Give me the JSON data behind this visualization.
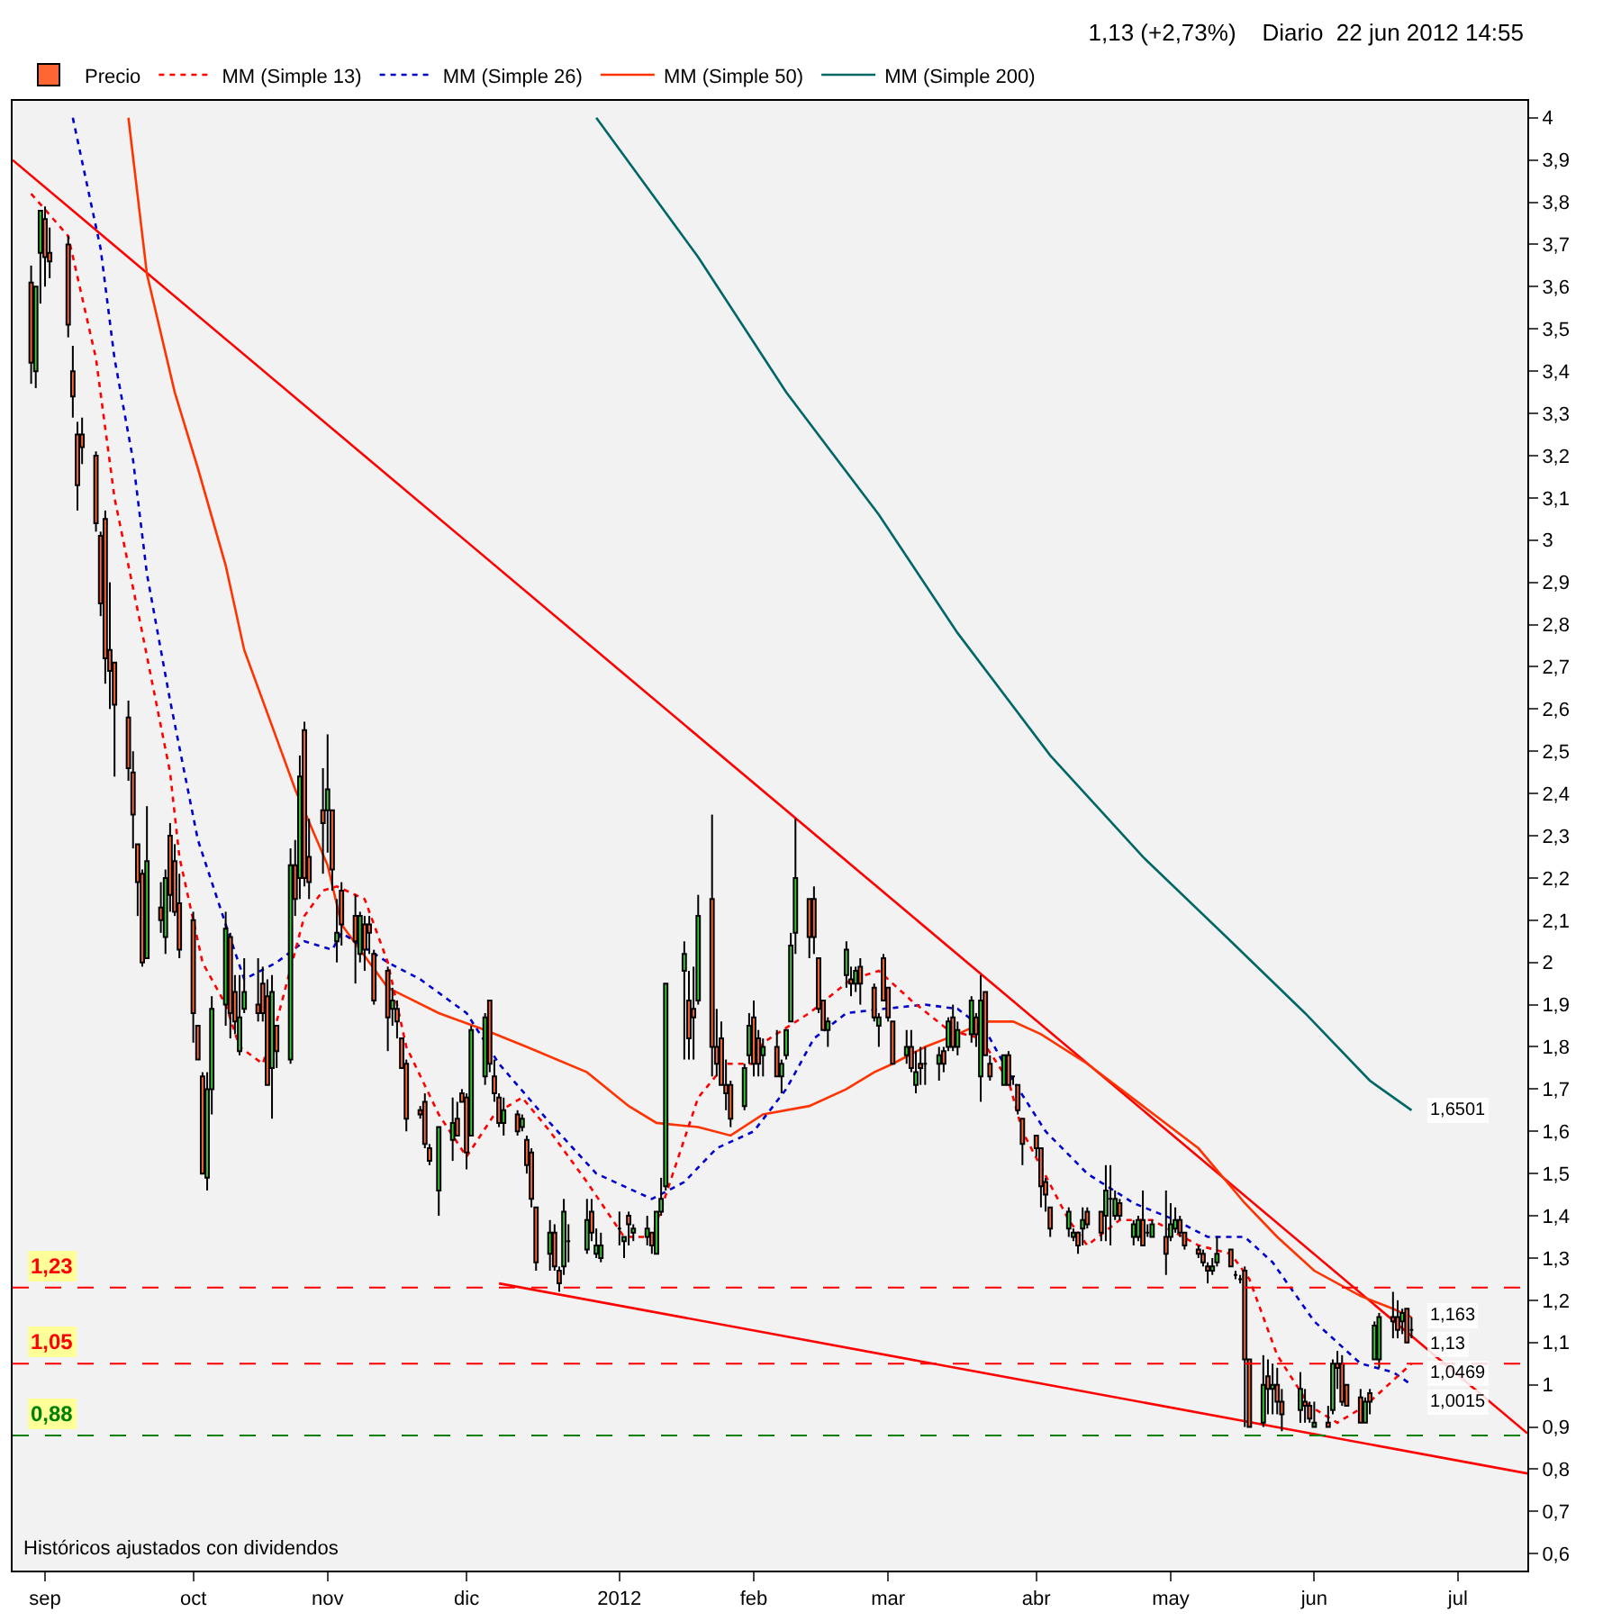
{
  "chart_data": {
    "type": "candlestick",
    "title": "1,13 (+2,73%)    Diario  22 jun 2012 14:55",
    "legend": "top left",
    "xlim": [
      "2011-08-25",
      "2012-07-17"
    ],
    "xticks": [
      {
        "value": "2011-09-01",
        "label": "sep"
      },
      {
        "value": "2011-10-03",
        "label": "oct"
      },
      {
        "value": "2011-11-01",
        "label": "nov"
      },
      {
        "value": "2011-12-01",
        "label": "dic"
      },
      {
        "value": "2012-01-03",
        "label": "2012"
      },
      {
        "value": "2012-02-01",
        "label": "feb"
      },
      {
        "value": "2012-03-01",
        "label": "mar"
      },
      {
        "value": "2012-04-02",
        "label": "abr"
      },
      {
        "value": "2012-05-01",
        "label": "may"
      },
      {
        "value": "2012-06-01",
        "label": "jun"
      },
      {
        "value": "2012-07-02",
        "label": "jul"
      }
    ],
    "ylim": [
      0.56,
      4.04
    ],
    "yticks": [
      {
        "value": 0.6,
        "label": "0,6"
      },
      {
        "value": 0.7,
        "label": "0,7"
      },
      {
        "value": 0.8,
        "label": "0,8"
      },
      {
        "value": 0.9,
        "label": "0,9"
      },
      {
        "value": 1,
        "label": "1"
      },
      {
        "value": 1.1,
        "label": "1,1"
      },
      {
        "value": 1.2,
        "label": "1,2"
      },
      {
        "value": 1.3,
        "label": "1,3"
      },
      {
        "value": 1.4,
        "label": "1,4"
      },
      {
        "value": 1.5,
        "label": "1,5"
      },
      {
        "value": 1.6,
        "label": "1,6"
      },
      {
        "value": 1.7,
        "label": "1,7"
      },
      {
        "value": 1.8,
        "label": "1,8"
      },
      {
        "value": 1.9,
        "label": "1,9"
      },
      {
        "value": 2,
        "label": "2"
      },
      {
        "value": 2.1,
        "label": "2,1"
      },
      {
        "value": 2.2,
        "label": "2,2"
      },
      {
        "value": 2.3,
        "label": "2,3"
      },
      {
        "value": 2.4,
        "label": "2,4"
      },
      {
        "value": 2.5,
        "label": "2,5"
      },
      {
        "value": 2.6,
        "label": "2,6"
      },
      {
        "value": 2.7,
        "label": "2,7"
      },
      {
        "value": 2.8,
        "label": "2,8"
      },
      {
        "value": 2.9,
        "label": "2,9"
      },
      {
        "value": 3,
        "label": "3"
      },
      {
        "value": 3.1,
        "label": "3,1"
      },
      {
        "value": 3.2,
        "label": "3,2"
      },
      {
        "value": 3.3,
        "label": "3,3"
      },
      {
        "value": 3.4,
        "label": "3,4"
      },
      {
        "value": 3.5,
        "label": "3,5"
      },
      {
        "value": 3.6,
        "label": "3,6"
      },
      {
        "value": 3.7,
        "label": "3,7"
      },
      {
        "value": 3.8,
        "label": "3,8"
      },
      {
        "value": 3.9,
        "label": "3,9"
      },
      {
        "value": 4,
        "label": "4"
      }
    ],
    "ref_lines": [
      {
        "axis": "y",
        "value": 1.23,
        "label": "1,23",
        "color": "#ff0000",
        "line_style": "dashed"
      },
      {
        "axis": "y",
        "value": 1.05,
        "label": "1,05",
        "color": "#ff0000",
        "line_style": "dashed"
      },
      {
        "axis": "y",
        "value": 0.88,
        "label": "0,88",
        "color": "#008000",
        "line_style": "dashed"
      }
    ],
    "annotations": [
      "Históricos ajustados con dividendos",
      {
        "text": "1,6501",
        "x": "2012-06-22",
        "y": 1.6501
      },
      {
        "text": "1,163",
        "x": "2012-06-22",
        "y": 1.163
      },
      {
        "text": "1,13",
        "x": "2012-06-22",
        "y": 1.13
      },
      {
        "text": "1,0469",
        "x": "2012-06-22",
        "y": 1.0469
      },
      {
        "text": "1,0015",
        "x": "2012-06-22",
        "y": 1.0015
      }
    ],
    "series": [
      {
        "type": "line",
        "color": "#ff0000",
        "line_style": "solid",
        "x": [
          "2011-08-25",
          "2012-07-17"
        ],
        "values": [
          3.9,
          0.885
        ]
      },
      {
        "type": "line",
        "color": "#ff0000",
        "line_style": "solid",
        "x": [
          "2011-12-08",
          "2012-07-17"
        ],
        "values": [
          1.24,
          0.79
        ]
      },
      {
        "type": "line",
        "name": "MM (Simple 200)",
        "color": "#006666",
        "line_style": "solid",
        "x": [
          "2011-12-29",
          "2012-01-20",
          "2012-02-08",
          "2012-02-28",
          "2012-03-16",
          "2012-04-05",
          "2012-04-25",
          "2012-05-14",
          "2012-05-30",
          "2012-06-13",
          "2012-06-22"
        ],
        "values": [
          4.0,
          3.67,
          3.35,
          3.06,
          2.78,
          2.49,
          2.25,
          2.05,
          1.88,
          1.72,
          1.65
        ]
      },
      {
        "type": "line",
        "name": "MM (Simple 50)",
        "color": "#ff3300",
        "line_style": "solid",
        "x": [
          "2011-09-19",
          "2011-09-23",
          "2011-09-29",
          "2011-10-04",
          "2011-10-10",
          "2011-10-14",
          "2011-10-21",
          "2011-10-25",
          "2011-11-01",
          "2011-11-04",
          "2011-11-14",
          "2011-11-25",
          "2011-12-05",
          "2011-12-14",
          "2011-12-27",
          "2012-01-05",
          "2012-01-11",
          "2012-01-20",
          "2012-01-27",
          "2012-02-03",
          "2012-02-13",
          "2012-02-21",
          "2012-02-27",
          "2012-03-02",
          "2012-03-09",
          "2012-03-16",
          "2012-03-22",
          "2012-03-28",
          "2012-04-03",
          "2012-04-13",
          "2012-04-25",
          "2012-05-07",
          "2012-05-17",
          "2012-05-24",
          "2012-06-01",
          "2012-06-11",
          "2012-06-18",
          "2012-06-22"
        ],
        "values": [
          4.0,
          3.63,
          3.35,
          3.17,
          2.94,
          2.74,
          2.53,
          2.41,
          2.23,
          2.09,
          1.94,
          1.88,
          1.84,
          1.8,
          1.74,
          1.66,
          1.62,
          1.61,
          1.59,
          1.64,
          1.66,
          1.7,
          1.74,
          1.76,
          1.8,
          1.83,
          1.86,
          1.86,
          1.83,
          1.76,
          1.66,
          1.56,
          1.43,
          1.35,
          1.27,
          1.21,
          1.18,
          1.16
        ]
      },
      {
        "type": "line",
        "name": "MM (Simple 26)",
        "color": "#0000cc",
        "line_style": "dotted",
        "x": [
          "2011-09-07",
          "2011-09-13",
          "2011-09-16",
          "2011-09-20",
          "2011-09-23",
          "2011-09-28",
          "2011-10-04",
          "2011-10-10",
          "2011-10-14",
          "2011-10-21",
          "2011-10-27",
          "2011-11-02",
          "2011-11-04",
          "2011-11-14",
          "2011-11-21",
          "2011-12-01",
          "2011-12-08",
          "2011-12-19",
          "2011-12-29",
          "2012-01-10",
          "2012-01-17",
          "2012-01-24",
          "2012-02-01",
          "2012-02-08",
          "2012-02-14",
          "2012-02-21",
          "2012-02-29",
          "2012-03-09",
          "2012-03-16",
          "2012-03-22",
          "2012-03-28",
          "2012-04-04",
          "2012-04-13",
          "2012-04-23",
          "2012-05-02",
          "2012-05-09",
          "2012-05-17",
          "2012-05-23",
          "2012-06-01",
          "2012-06-11",
          "2012-06-18",
          "2012-06-22"
        ],
        "values": [
          4.0,
          3.69,
          3.43,
          3.19,
          2.92,
          2.62,
          2.29,
          2.09,
          1.96,
          2.0,
          2.05,
          2.03,
          2.07,
          2.0,
          1.96,
          1.88,
          1.76,
          1.62,
          1.5,
          1.44,
          1.48,
          1.56,
          1.6,
          1.7,
          1.82,
          1.88,
          1.89,
          1.9,
          1.89,
          1.84,
          1.72,
          1.6,
          1.5,
          1.43,
          1.39,
          1.35,
          1.35,
          1.29,
          1.15,
          1.05,
          1.03,
          1.0
        ]
      },
      {
        "type": "line",
        "name": "MM (Simple 13)",
        "color": "#ff0000",
        "line_style": "dotted",
        "x": [
          "2011-08-29",
          "2011-09-06",
          "2011-09-12",
          "2011-09-16",
          "2011-09-22",
          "2011-09-28",
          "2011-09-30",
          "2011-10-05",
          "2011-10-10",
          "2011-10-13",
          "2011-10-18",
          "2011-10-21",
          "2011-10-27",
          "2011-10-31",
          "2011-11-03",
          "2011-11-09",
          "2011-11-14",
          "2011-11-18",
          "2011-11-25",
          "2011-12-01",
          "2011-12-07",
          "2011-12-13",
          "2011-12-19",
          "2011-12-27",
          "2012-01-04",
          "2012-01-10",
          "2012-01-13",
          "2012-01-20",
          "2012-01-26",
          "2012-02-01",
          "2012-02-03",
          "2012-02-13",
          "2012-02-22",
          "2012-02-28",
          "2012-03-06",
          "2012-03-14",
          "2012-03-21",
          "2012-03-27",
          "2012-03-30",
          "2012-04-09",
          "2012-04-13",
          "2012-04-20",
          "2012-04-27",
          "2012-05-07",
          "2012-05-14",
          "2012-05-18",
          "2012-05-24",
          "2012-05-31",
          "2012-06-06",
          "2012-06-12",
          "2012-06-18",
          "2012-06-22"
        ],
        "values": [
          3.82,
          3.72,
          3.43,
          3.1,
          2.78,
          2.45,
          2.25,
          2.0,
          1.9,
          1.8,
          1.76,
          1.86,
          2.11,
          2.17,
          2.18,
          2.15,
          2.0,
          1.8,
          1.64,
          1.54,
          1.64,
          1.68,
          1.6,
          1.48,
          1.35,
          1.35,
          null,
          1.68,
          1.76,
          1.76,
          1.81,
          1.88,
          1.96,
          1.98,
          1.91,
          1.84,
          1.82,
          1.72,
          1.6,
          1.39,
          1.33,
          1.39,
          1.39,
          1.33,
          1.31,
          1.25,
          1.07,
          0.95,
          0.91,
          0.95,
          1.01,
          1.05
        ]
      },
      {
        "type": "candlestick",
        "name": "Precio",
        "x": [
          "2011-08-29",
          "2011-08-30",
          "2011-08-31",
          "2011-09-01",
          "2011-09-02",
          "2011-09-06",
          "2011-09-07",
          "2011-09-08",
          "2011-09-09",
          "2011-09-12",
          "2011-09-13",
          "2011-09-14",
          "2011-09-15",
          "2011-09-16",
          "2011-09-19",
          "2011-09-20",
          "2011-09-21",
          "2011-09-22",
          "2011-09-23",
          "2011-09-26",
          "2011-09-27",
          "2011-09-28",
          "2011-09-29",
          "2011-09-30",
          "2011-10-03",
          "2011-10-04",
          "2011-10-05",
          "2011-10-06",
          "2011-10-07",
          "2011-10-10",
          "2011-10-11",
          "2011-10-12",
          "2011-10-13",
          "2011-10-14",
          "2011-10-17",
          "2011-10-18",
          "2011-10-19",
          "2011-10-20",
          "2011-10-21",
          "2011-10-24",
          "2011-10-25",
          "2011-10-26",
          "2011-10-27",
          "2011-10-28",
          "2011-10-31",
          "2011-11-01",
          "2011-11-02",
          "2011-11-03",
          "2011-11-04",
          "2011-11-07",
          "2011-11-08",
          "2011-11-09",
          "2011-11-10",
          "2011-11-11",
          "2011-11-14",
          "2011-11-15",
          "2011-11-16",
          "2011-11-17",
          "2011-11-18",
          "2011-11-21",
          "2011-11-22",
          "2011-11-23",
          "2011-11-25",
          "2011-11-28",
          "2011-11-29",
          "2011-11-30",
          "2011-12-01",
          "2011-12-02",
          "2011-12-05",
          "2011-12-06",
          "2011-12-07",
          "2011-12-08",
          "2011-12-09",
          "2011-12-12",
          "2011-12-13",
          "2011-12-14",
          "2011-12-15",
          "2011-12-16",
          "2011-12-19",
          "2011-12-20",
          "2011-12-21",
          "2011-12-22",
          "2011-12-23",
          "2011-12-27",
          "2011-12-28",
          "2011-12-29",
          "2011-12-30",
          "2012-01-03",
          "2012-01-04",
          "2012-01-05",
          "2012-01-06",
          "2012-01-09",
          "2012-01-10",
          "2012-01-11",
          "2012-01-12",
          "2012-01-13",
          "2012-01-17",
          "2012-01-18",
          "2012-01-19",
          "2012-01-20",
          "2012-01-23",
          "2012-01-24",
          "2012-01-25",
          "2012-01-26",
          "2012-01-27",
          "2012-01-30",
          "2012-01-31",
          "2012-02-01",
          "2012-02-02",
          "2012-02-03",
          "2012-02-06",
          "2012-02-07",
          "2012-02-08",
          "2012-02-09",
          "2012-02-10",
          "2012-02-13",
          "2012-02-14",
          "2012-02-15",
          "2012-02-16",
          "2012-02-17",
          "2012-02-21",
          "2012-02-22",
          "2012-02-23",
          "2012-02-24",
          "2012-02-27",
          "2012-02-28",
          "2012-02-29",
          "2012-03-01",
          "2012-03-02",
          "2012-03-05",
          "2012-03-06",
          "2012-03-07",
          "2012-03-08",
          "2012-03-09",
          "2012-03-12",
          "2012-03-13",
          "2012-03-14",
          "2012-03-15",
          "2012-03-16",
          "2012-03-19",
          "2012-03-20",
          "2012-03-21",
          "2012-03-22",
          "2012-03-23",
          "2012-03-26",
          "2012-03-27",
          "2012-03-28",
          "2012-03-29",
          "2012-03-30",
          "2012-04-02",
          "2012-04-03",
          "2012-04-04",
          "2012-04-05",
          "2012-04-09",
          "2012-04-10",
          "2012-04-11",
          "2012-04-12",
          "2012-04-13",
          "2012-04-16",
          "2012-04-17",
          "2012-04-18",
          "2012-04-19",
          "2012-04-20",
          "2012-04-23",
          "2012-04-24",
          "2012-04-25",
          "2012-04-26",
          "2012-04-27",
          "2012-04-30",
          "2012-05-01",
          "2012-05-02",
          "2012-05-03",
          "2012-05-04",
          "2012-05-07",
          "2012-05-08",
          "2012-05-09",
          "2012-05-10",
          "2012-05-11",
          "2012-05-14",
          "2012-05-15",
          "2012-05-16",
          "2012-05-17",
          "2012-05-18",
          "2012-05-21",
          "2012-05-22",
          "2012-05-23",
          "2012-05-24",
          "2012-05-25",
          "2012-05-29",
          "2012-05-30",
          "2012-05-31",
          "2012-06-01",
          "2012-06-04",
          "2012-06-05",
          "2012-06-06",
          "2012-06-07",
          "2012-06-08",
          "2012-06-11",
          "2012-06-12",
          "2012-06-13",
          "2012-06-14",
          "2012-06-15",
          "2012-06-18",
          "2012-06-19",
          "2012-06-20",
          "2012-06-21",
          "2012-06-22"
        ],
        "ohlc": [
          [
            3.61,
            3.65,
            3.37,
            3.42
          ],
          [
            3.4,
            3.6,
            3.36,
            3.6
          ],
          [
            3.68,
            3.78,
            3.56,
            3.78
          ],
          [
            3.76,
            3.79,
            3.6,
            3.67
          ],
          [
            3.68,
            3.74,
            3.62,
            3.66
          ],
          [
            3.7,
            3.72,
            3.48,
            3.51
          ],
          [
            3.4,
            3.46,
            3.29,
            3.34
          ],
          [
            3.25,
            3.28,
            3.07,
            3.13
          ],
          [
            3.25,
            3.29,
            3.18,
            3.22
          ],
          [
            3.2,
            3.21,
            3.02,
            3.04
          ],
          [
            3.01,
            3.02,
            2.82,
            2.85
          ],
          [
            3.05,
            3.07,
            2.66,
            2.72
          ],
          [
            2.74,
            2.9,
            2.6,
            2.69
          ],
          [
            2.71,
            2.71,
            2.44,
            2.61
          ],
          [
            2.58,
            2.62,
            2.43,
            2.46
          ],
          [
            2.45,
            2.5,
            2.27,
            2.35
          ],
          [
            2.28,
            2.28,
            2.11,
            2.19
          ],
          [
            2.21,
            2.22,
            1.99,
            2.0
          ],
          [
            2.01,
            2.37,
            2.01,
            2.24
          ],
          [
            2.13,
            2.19,
            2.07,
            2.1
          ],
          [
            2.06,
            2.22,
            2.02,
            2.2
          ],
          [
            2.3,
            2.33,
            2.12,
            2.16
          ],
          [
            2.24,
            2.28,
            2.11,
            2.12
          ],
          [
            2.14,
            2.21,
            2.01,
            2.03
          ],
          [
            2.1,
            2.12,
            1.81,
            1.88
          ],
          [
            1.85,
            1.85,
            1.77,
            1.77
          ],
          [
            1.73,
            1.74,
            1.5,
            1.5
          ],
          [
            1.49,
            1.74,
            1.46,
            1.7
          ],
          [
            1.7,
            1.92,
            1.64,
            1.89
          ],
          [
            1.9,
            2.12,
            1.85,
            2.08
          ],
          [
            2.06,
            2.07,
            1.82,
            1.88
          ],
          [
            1.93,
            1.97,
            1.83,
            1.86
          ],
          [
            1.79,
            1.97,
            1.78,
            1.87
          ],
          [
            1.89,
            2.01,
            1.88,
            1.93
          ],
          [
            1.9,
            2.01,
            1.86,
            1.88
          ],
          [
            1.95,
            1.99,
            1.86,
            1.88
          ],
          [
            1.92,
            1.96,
            1.71,
            1.71
          ],
          [
            1.75,
            1.97,
            1.63,
            1.93
          ],
          [
            1.85,
            1.85,
            1.75,
            1.79
          ],
          [
            1.77,
            2.27,
            1.76,
            2.23
          ],
          [
            2.23,
            2.29,
            2.11,
            2.15
          ],
          [
            2.2,
            2.49,
            2.15,
            2.44
          ],
          [
            2.55,
            2.57,
            2.18,
            2.2
          ],
          [
            2.25,
            2.34,
            2.15,
            2.19
          ],
          [
            2.36,
            2.46,
            2.21,
            2.33
          ],
          [
            2.36,
            2.54,
            2.26,
            2.41
          ],
          [
            2.36,
            2.36,
            2.17,
            2.22
          ],
          [
            2.05,
            2.15,
            2.0,
            2.07
          ],
          [
            2.17,
            2.19,
            2.04,
            2.09
          ],
          [
            2.11,
            2.16,
            1.95,
            2.05
          ],
          [
            2.02,
            2.12,
            2.0,
            2.11
          ],
          [
            2.09,
            2.11,
            1.98,
            2.03
          ],
          [
            2.09,
            2.11,
            2.02,
            2.07
          ],
          [
            2.02,
            2.03,
            1.9,
            1.91
          ],
          [
            1.98,
            1.99,
            1.79,
            1.87
          ],
          [
            1.89,
            1.94,
            1.85,
            1.91
          ],
          [
            1.89,
            1.91,
            1.82,
            1.86
          ],
          [
            1.82,
            1.82,
            1.75,
            1.75
          ],
          [
            1.76,
            1.77,
            1.6,
            1.63
          ],
          [
            1.65,
            1.66,
            1.63,
            1.64
          ],
          [
            1.67,
            1.69,
            1.56,
            1.57
          ],
          [
            1.56,
            1.57,
            1.52,
            1.53
          ],
          [
            1.46,
            1.61,
            1.4,
            1.61
          ],
          [
            1.58,
            1.68,
            1.53,
            1.62
          ],
          [
            1.63,
            1.67,
            1.59,
            1.59
          ],
          [
            1.69,
            1.7,
            1.67,
            1.67
          ],
          [
            1.68,
            1.69,
            1.51,
            1.55
          ],
          [
            1.59,
            1.85,
            1.59,
            1.84
          ],
          [
            1.73,
            1.88,
            1.71,
            1.87
          ],
          [
            1.91,
            1.91,
            1.74,
            1.76
          ],
          [
            1.73,
            1.77,
            1.67,
            1.69
          ],
          [
            1.68,
            1.69,
            1.61,
            1.62
          ],
          [
            1.62,
            1.68,
            1.59,
            1.65
          ],
          [
            1.64,
            1.65,
            1.59,
            1.6
          ],
          [
            1.61,
            1.64,
            1.6,
            1.63
          ],
          [
            1.58,
            1.59,
            1.5,
            1.52
          ],
          [
            1.55,
            1.56,
            1.42,
            1.44
          ],
          [
            1.42,
            1.42,
            1.27,
            1.29
          ],
          [
            1.31,
            1.39,
            1.27,
            1.36
          ],
          [
            1.36,
            1.38,
            1.27,
            1.28
          ],
          [
            1.27,
            1.28,
            1.22,
            1.24
          ],
          [
            1.28,
            1.44,
            1.26,
            1.41
          ],
          [
            1.34,
            1.38,
            1.29,
            1.34
          ],
          [
            1.32,
            1.44,
            1.31,
            1.39
          ],
          [
            1.41,
            1.44,
            1.34,
            1.36
          ],
          [
            1.31,
            1.37,
            1.3,
            1.33
          ],
          [
            1.3,
            1.36,
            1.29,
            1.33
          ],
          [
            1.37,
            1.41,
            1.33,
            1.37
          ],
          [
            1.34,
            1.35,
            1.3,
            1.35
          ],
          [
            1.4,
            1.41,
            1.33,
            1.38
          ],
          [
            1.36,
            1.38,
            1.34,
            1.37
          ],
          [
            1.35,
            1.4,
            1.33,
            1.37
          ],
          [
            1.36,
            1.36,
            1.31,
            1.33
          ],
          [
            1.31,
            1.41,
            1.31,
            1.41
          ],
          [
            1.41,
            1.49,
            1.4,
            1.44
          ],
          [
            1.47,
            1.95,
            1.46,
            1.95
          ],
          [
            1.98,
            2.05,
            1.77,
            2.02
          ],
          [
            1.91,
            1.98,
            1.77,
            1.82
          ],
          [
            1.89,
            1.99,
            1.77,
            1.87
          ],
          [
            1.91,
            2.16,
            1.9,
            2.11
          ],
          [
            2.15,
            2.35,
            1.73,
            1.8
          ],
          [
            1.8,
            1.89,
            1.73,
            1.76
          ],
          [
            1.82,
            1.86,
            1.71,
            1.71
          ],
          [
            1.71,
            1.77,
            1.65,
            1.69
          ],
          [
            1.71,
            1.72,
            1.61,
            1.63
          ],
          [
            1.66,
            1.76,
            1.65,
            1.75
          ],
          [
            1.78,
            1.88,
            1.76,
            1.85
          ],
          [
            1.87,
            1.91,
            1.73,
            1.76
          ],
          [
            1.82,
            1.84,
            1.73,
            1.76
          ],
          [
            1.78,
            1.82,
            1.73,
            1.8
          ],
          [
            1.8,
            1.84,
            1.73,
            1.73
          ],
          [
            1.73,
            1.77,
            1.69,
            1.76
          ],
          [
            1.78,
            1.84,
            1.77,
            1.84
          ],
          [
            1.86,
            2.07,
            1.86,
            2.04
          ],
          [
            2.07,
            2.34,
            2.02,
            2.2
          ],
          [
            2.15,
            2.15,
            2.01,
            2.06
          ],
          [
            2.15,
            2.18,
            2.02,
            2.06
          ],
          [
            2.01,
            2.01,
            1.88,
            1.89
          ],
          [
            1.91,
            1.91,
            1.84,
            1.84
          ],
          [
            1.84,
            1.87,
            1.8,
            1.86
          ],
          [
            1.97,
            2.05,
            1.94,
            2.03
          ],
          [
            1.96,
            1.99,
            1.92,
            1.95
          ],
          [
            1.95,
            1.99,
            1.93,
            1.98
          ],
          [
            1.99,
            2.01,
            1.9,
            1.95
          ],
          [
            1.94,
            1.95,
            1.86,
            1.87
          ],
          [
            1.85,
            1.88,
            1.8,
            1.87
          ],
          [
            2.01,
            2.02,
            1.91,
            1.91
          ],
          [
            1.94,
            1.94,
            1.86,
            1.87
          ],
          [
            1.86,
            1.86,
            1.76,
            1.76
          ],
          [
            1.78,
            1.84,
            1.76,
            1.8
          ],
          [
            1.8,
            1.84,
            1.74,
            1.75
          ],
          [
            1.71,
            1.79,
            1.69,
            1.74
          ],
          [
            1.76,
            1.8,
            1.71,
            1.75
          ],
          [
            1.76,
            1.8,
            1.71,
            1.76
          ],
          [
            1.76,
            1.8,
            1.72,
            1.78
          ],
          [
            1.79,
            1.8,
            1.74,
            1.76
          ],
          [
            1.8,
            1.87,
            1.79,
            1.86
          ],
          [
            1.87,
            1.9,
            1.79,
            1.8
          ],
          [
            1.8,
            1.86,
            1.78,
            1.84
          ],
          [
            1.83,
            1.92,
            1.81,
            1.91
          ],
          [
            1.87,
            1.88,
            1.8,
            1.83
          ],
          [
            1.73,
            1.97,
            1.67,
            1.91
          ],
          [
            1.93,
            1.93,
            1.78,
            1.78
          ],
          [
            1.76,
            1.78,
            1.72,
            1.73
          ],
          [
            1.71,
            1.78,
            1.71,
            1.78
          ],
          [
            1.78,
            1.79,
            1.71,
            1.71
          ],
          [
            1.73,
            1.73,
            1.71,
            1.73
          ],
          [
            1.71,
            1.71,
            1.64,
            1.65
          ],
          [
            1.63,
            1.63,
            1.52,
            1.57
          ],
          [
            1.59,
            1.59,
            1.54,
            1.56
          ],
          [
            1.56,
            1.56,
            1.42,
            1.47
          ],
          [
            1.48,
            1.49,
            1.41,
            1.45
          ],
          [
            1.42,
            1.42,
            1.35,
            1.37
          ],
          [
            1.37,
            1.42,
            1.35,
            1.41
          ],
          [
            1.35,
            1.37,
            1.34,
            1.36
          ],
          [
            1.36,
            1.36,
            1.31,
            1.33
          ],
          [
            1.37,
            1.42,
            1.33,
            1.39
          ],
          [
            1.41,
            1.42,
            1.37,
            1.38
          ],
          [
            1.41,
            1.41,
            1.34,
            1.36
          ],
          [
            1.4,
            1.52,
            1.34,
            1.46
          ],
          [
            1.44,
            1.52,
            1.33,
            1.44
          ],
          [
            1.4,
            1.46,
            1.39,
            1.44
          ],
          [
            1.43,
            1.44,
            1.39,
            1.4
          ],
          [
            1.35,
            1.39,
            1.33,
            1.38
          ],
          [
            1.35,
            1.4,
            1.34,
            1.39
          ],
          [
            1.39,
            1.46,
            1.33,
            1.33
          ],
          [
            1.36,
            1.38,
            1.35,
            1.36
          ],
          [
            1.35,
            1.39,
            1.35,
            1.38
          ],
          [
            1.35,
            1.46,
            1.26,
            1.31
          ],
          [
            1.35,
            1.43,
            1.34,
            1.38
          ],
          [
            1.37,
            1.42,
            1.36,
            1.39
          ],
          [
            1.39,
            1.4,
            1.35,
            1.36
          ],
          [
            1.36,
            1.36,
            1.32,
            1.33
          ],
          [
            1.32,
            1.33,
            1.3,
            1.31
          ],
          [
            1.31,
            1.32,
            1.28,
            1.29
          ],
          [
            1.28,
            1.29,
            1.24,
            1.27
          ],
          [
            1.27,
            1.3,
            1.26,
            1.28
          ],
          [
            1.29,
            1.35,
            1.28,
            1.31
          ],
          [
            1.32,
            1.32,
            1.28,
            1.28
          ],
          [
            1.26,
            1.27,
            1.25,
            1.26
          ],
          [
            1.25,
            1.26,
            1.24,
            1.25
          ],
          [
            1.27,
            1.28,
            0.9,
            1.06
          ],
          [
            1.06,
            1.06,
            0.9,
            0.9
          ],
          [
            0.91,
            1.07,
            0.9,
            1.0
          ],
          [
            1.02,
            1.06,
            0.93,
            0.99
          ],
          [
            0.99,
            1.05,
            0.93,
            1.0
          ],
          [
            1.0,
            1.04,
            0.93,
            0.96
          ],
          [
            0.96,
            0.99,
            0.89,
            0.93
          ],
          [
            0.94,
            1.03,
            0.91,
            0.99
          ],
          [
            0.96,
            0.99,
            0.91,
            0.95
          ],
          [
            0.95,
            0.96,
            0.91,
            0.92
          ],
          [
            0.9,
            0.96,
            0.9,
            0.91
          ],
          [
            0.91,
            0.95,
            0.9,
            0.9
          ],
          [
            0.94,
            1.06,
            0.93,
            1.05
          ],
          [
            1.05,
            1.08,
            0.99,
            1.04
          ],
          [
            1.05,
            1.07,
            0.95,
            0.96
          ],
          [
            1.0,
            1.0,
            0.95,
            0.95
          ],
          [
            0.97,
            0.99,
            0.91,
            0.91
          ],
          [
            0.91,
            0.97,
            0.91,
            0.96
          ],
          [
            0.98,
            0.99,
            0.93,
            0.96
          ],
          [
            1.06,
            1.15,
            1.06,
            1.14
          ],
          [
            1.06,
            1.17,
            1.04,
            1.16
          ],
          [
            1.16,
            1.22,
            1.11,
            1.15
          ],
          [
            1.16,
            1.2,
            1.11,
            1.13
          ],
          [
            1.15,
            1.18,
            1.12,
            1.17
          ],
          [
            1.18,
            1.18,
            1.1,
            1.1
          ],
          [
            1.13,
            1.16,
            1.11,
            1.13
          ]
        ]
      }
    ]
  }
}
